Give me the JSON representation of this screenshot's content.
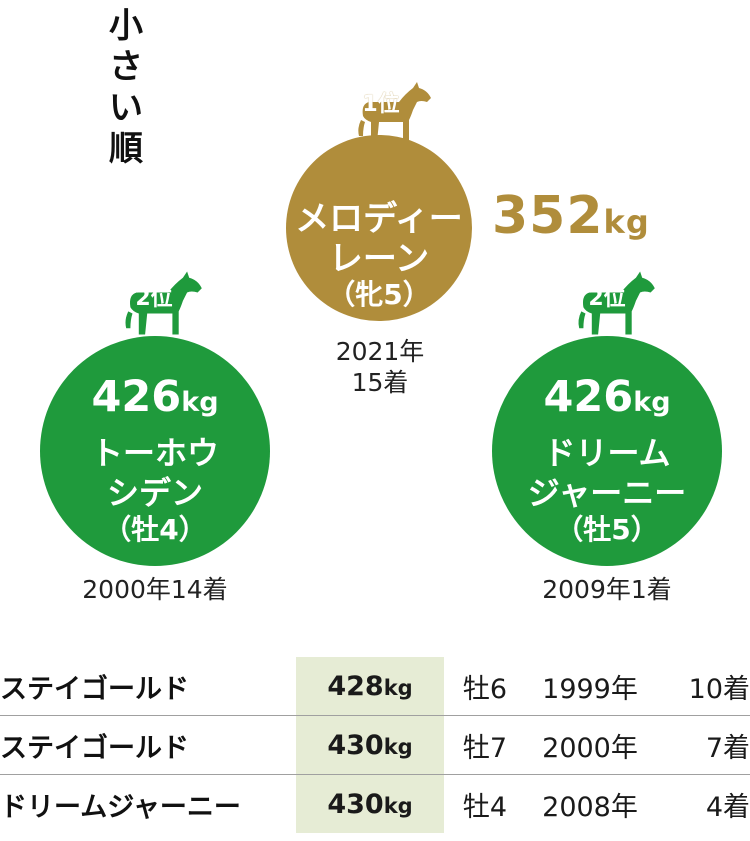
{
  "title": "小さい順",
  "first": {
    "rank": "1位",
    "name_line1": "メロディー",
    "name_line2": "レーン",
    "sex_age": "（牝5）",
    "weight": "352",
    "unit": "kg",
    "year": "2021年",
    "finish": "15着",
    "colors": {
      "gold": "#b08d3b"
    }
  },
  "second_left": {
    "rank": "2位",
    "weight": "426",
    "unit": "kg",
    "name_line1": "トーホウ",
    "name_line2": "シデン",
    "sex_age": "（牡4）",
    "record": "2000年14着",
    "colors": {
      "green": "#1f9a3c"
    }
  },
  "second_right": {
    "rank": "2位",
    "weight": "426",
    "unit": "kg",
    "name_line1": "ドリーム",
    "name_line2": "ジャーニー",
    "sex_age": "（牡5）",
    "record": "2009年1着"
  },
  "list": [
    {
      "name": "ステイゴールド",
      "weight": "428",
      "unit": "kg",
      "sex_age": "牡6",
      "year": "1999年",
      "finish": "10着"
    },
    {
      "name": "ステイゴールド",
      "weight": "430",
      "unit": "kg",
      "sex_age": "牡7",
      "year": "2000年",
      "finish": "7着"
    },
    {
      "name": "ドリームジャーニー",
      "weight": "430",
      "unit": "kg",
      "sex_age": "牡4",
      "year": "2008年",
      "finish": "4着"
    }
  ]
}
